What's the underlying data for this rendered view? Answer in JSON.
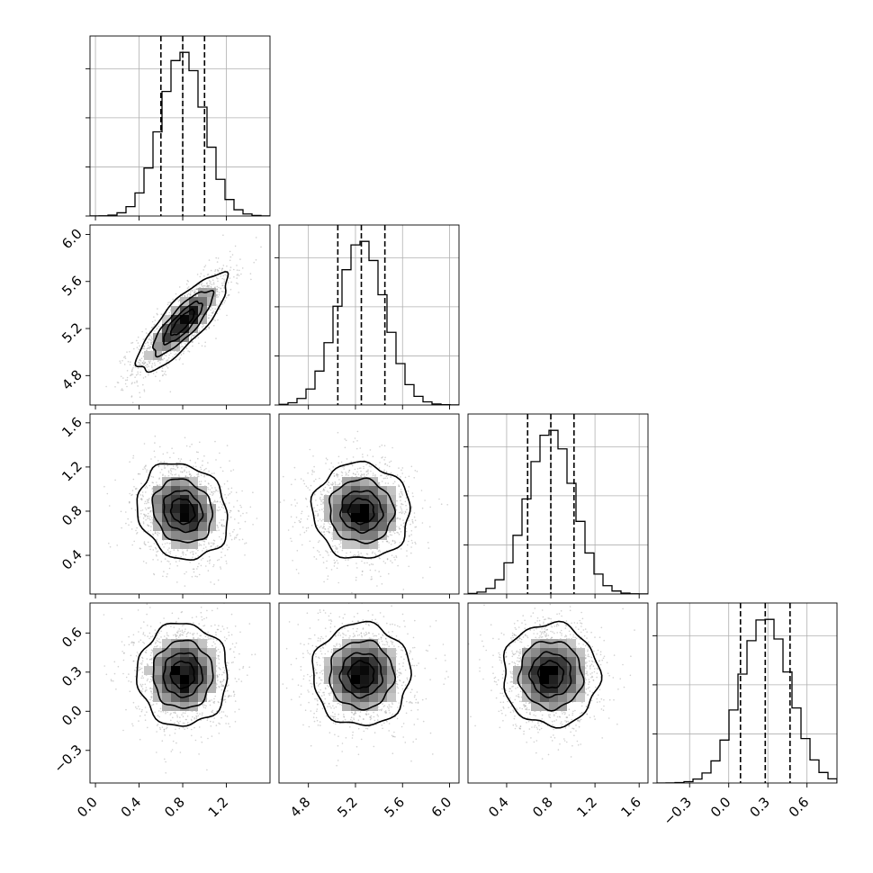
{
  "chart_data": {
    "type": "corner",
    "n_params": 4,
    "grid": true,
    "params": [
      {
        "index": 0,
        "range": [
          -0.05,
          1.6
        ],
        "ticks": [
          "0.0",
          "0.4",
          "0.8",
          "1.2"
        ],
        "tick_values": [
          0.0,
          0.4,
          0.8,
          1.2
        ],
        "mean": 0.8,
        "std": 0.2,
        "quantiles": [
          0.6,
          0.8,
          1.0
        ]
      },
      {
        "index": 1,
        "range": [
          4.55,
          6.08
        ],
        "ticks": [
          "4.8",
          "5.2",
          "5.6",
          "6.0"
        ],
        "tick_values": [
          4.8,
          5.2,
          5.6,
          6.0
        ],
        "mean": 5.25,
        "std": 0.2,
        "quantiles": [
          5.05,
          5.25,
          5.45
        ]
      },
      {
        "index": 2,
        "range": [
          0.05,
          1.68
        ],
        "ticks": [
          "0.4",
          "0.8",
          "1.2",
          "1.6"
        ],
        "tick_values": [
          0.4,
          0.8,
          1.2,
          1.6
        ],
        "mean": 0.8,
        "std": 0.21,
        "quantiles": [
          0.59,
          0.8,
          1.01
        ]
      },
      {
        "index": 3,
        "range": [
          -0.55,
          0.83
        ],
        "ticks": [
          "−0.3",
          "0.0",
          "0.3",
          "0.6"
        ],
        "tick_values": [
          -0.3,
          0.0,
          0.3,
          0.6
        ],
        "mean": 0.28,
        "std": 0.19,
        "quantiles": [
          0.09,
          0.28,
          0.47
        ]
      }
    ],
    "correlations": [
      {
        "i": 1,
        "j": 0,
        "rho": 0.82
      },
      {
        "i": 2,
        "j": 0,
        "rho": -0.15
      },
      {
        "i": 2,
        "j": 1,
        "rho": -0.03
      },
      {
        "i": 3,
        "j": 0,
        "rho": 0.0
      },
      {
        "i": 3,
        "j": 1,
        "rho": 0.0
      },
      {
        "i": 3,
        "j": 2,
        "rho": -0.03
      }
    ],
    "contour_levels_sigma": [
      0.5,
      1.0,
      1.5,
      2.0
    ],
    "histogram_bins": 20
  }
}
